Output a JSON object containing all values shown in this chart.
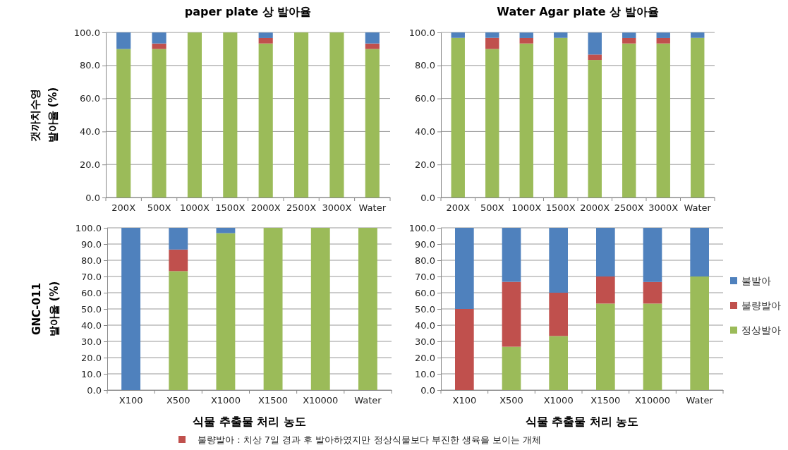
{
  "chart_data": [
    {
      "type": "bar",
      "stacked": true,
      "title": "paper plate 상 발아율",
      "ylabel": "발아율 (%)",
      "annotations": [
        "갯까치수영"
      ],
      "categories": [
        "200X",
        "500X",
        "1000X",
        "1500X",
        "2000X",
        "2500X",
        "3000X",
        "Water"
      ],
      "series": [
        {
          "color": "#9bbb59",
          "values": [
            90,
            90,
            100,
            100,
            93.3,
            100,
            100,
            90
          ]
        },
        {
          "color": "#c0504d",
          "values": [
            0,
            3.3,
            0,
            0,
            3.3,
            0,
            0,
            3.3
          ]
        },
        {
          "color": "#4f81bd",
          "values": [
            10,
            6.7,
            0,
            0,
            3.3,
            0,
            0,
            6.7
          ]
        }
      ],
      "ylim": [
        0,
        100
      ],
      "yticks": [
        {
          "value": 0,
          "label": "0.0"
        },
        {
          "value": 20,
          "label": "20.0"
        },
        {
          "value": 40,
          "label": "40.0"
        },
        {
          "value": 60,
          "label": "60.0"
        },
        {
          "value": 80,
          "label": "80.0"
        },
        {
          "value": 100,
          "label": "100.0"
        }
      ],
      "grid": "y"
    },
    {
      "type": "bar",
      "stacked": true,
      "title": "Water Agar plate 상 발아율",
      "categories": [
        "200X",
        "500X",
        "1000X",
        "1500X",
        "2000X",
        "2500X",
        "3000X",
        "Water"
      ],
      "series": [
        {
          "color": "#9bbb59",
          "values": [
            96.7,
            90,
            93.3,
            96.7,
            83.3,
            93.3,
            93.3,
            96.7
          ]
        },
        {
          "color": "#c0504d",
          "values": [
            0,
            6.7,
            3.3,
            0,
            3.3,
            3.3,
            3.3,
            0
          ]
        },
        {
          "color": "#4f81bd",
          "values": [
            3.3,
            3.3,
            3.3,
            3.3,
            13.3,
            3.3,
            3.3,
            3.3
          ]
        }
      ],
      "ylim": [
        0,
        100
      ],
      "yticks": [
        {
          "value": 0,
          "label": "0.0"
        },
        {
          "value": 20,
          "label": "20.0"
        },
        {
          "value": 40,
          "label": "40.0"
        },
        {
          "value": 60,
          "label": "60.0"
        },
        {
          "value": 80,
          "label": "80.0"
        },
        {
          "value": 100,
          "label": "100.0"
        }
      ],
      "grid": "y"
    },
    {
      "type": "bar",
      "stacked": true,
      "xlabel": "식물 추출물 처리 농도",
      "ylabel": "발아율 (%)",
      "annotations": [
        "GNC-011"
      ],
      "categories": [
        "X100",
        "X500",
        "X1000",
        "X1500",
        "X10000",
        "Water"
      ],
      "series": [
        {
          "color": "#9bbb59",
          "values": [
            0,
            73.3,
            96.7,
            100,
            100,
            100
          ]
        },
        {
          "color": "#c0504d",
          "values": [
            0,
            13.3,
            0,
            0,
            0,
            0
          ]
        },
        {
          "color": "#4f81bd",
          "values": [
            100,
            13.4,
            3.3,
            0,
            0,
            0
          ]
        }
      ],
      "ylim": [
        0,
        100
      ],
      "yticks": [
        {
          "value": 0,
          "label": "0.0"
        },
        {
          "value": 10,
          "label": "10.0"
        },
        {
          "value": 20,
          "label": "20.0"
        },
        {
          "value": 30,
          "label": "30.0"
        },
        {
          "value": 40,
          "label": "40.0"
        },
        {
          "value": 50,
          "label": "50.0"
        },
        {
          "value": 60,
          "label": "60.0"
        },
        {
          "value": 70,
          "label": "70.0"
        },
        {
          "value": 80,
          "label": "80.0"
        },
        {
          "value": 90,
          "label": "90.0"
        },
        {
          "value": 100,
          "label": "100.0"
        }
      ],
      "grid": "y"
    },
    {
      "type": "bar",
      "stacked": true,
      "xlabel": "식물 추출물 처리 농도",
      "annotations": [
        "불량발아 : 치상 7일 경과 후 발아하였지만 정상식물보다 부진한 생육을  보이는 개체"
      ],
      "categories": [
        "X100",
        "X500",
        "X1000",
        "X1500",
        "X10000",
        "Water"
      ],
      "series": [
        {
          "name": "정상발아",
          "color": "#9bbb59",
          "values": [
            0,
            26.7,
            33.3,
            53.3,
            53.3,
            70
          ]
        },
        {
          "name": "불량발아",
          "color": "#c0504d",
          "values": [
            50,
            40,
            26.7,
            16.7,
            13.3,
            0
          ]
        },
        {
          "name": "불발아",
          "color": "#4f81bd",
          "values": [
            50,
            33.3,
            40,
            30,
            33.4,
            30
          ]
        }
      ],
      "ylim": [
        0,
        100
      ],
      "yticks": [
        {
          "value": 0,
          "label": "0.0"
        },
        {
          "value": 10,
          "label": "10.0"
        },
        {
          "value": 20,
          "label": "20.0"
        },
        {
          "value": 30,
          "label": "30.0"
        },
        {
          "value": 40,
          "label": "40.0"
        },
        {
          "value": 50,
          "label": "50.0"
        },
        {
          "value": 60,
          "label": "60.0"
        },
        {
          "value": 70,
          "label": "70.0"
        },
        {
          "value": 80,
          "label": "80.0"
        },
        {
          "value": 90,
          "label": "90.0"
        },
        {
          "value": 100,
          "label": "100.0"
        }
      ],
      "grid": "y",
      "legend": "right"
    }
  ]
}
